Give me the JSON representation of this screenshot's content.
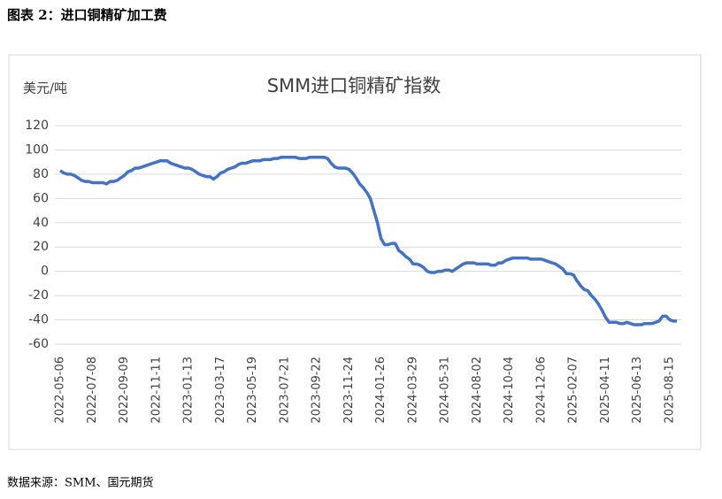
{
  "caption": "图表 2：进口铜精矿加工费",
  "source": "数据来源：SMM、国元期货",
  "chart_data": {
    "type": "line",
    "title": "SMM进口铜精矿指数",
    "y_label": "美元/吨",
    "ylim": [
      -60,
      120
    ],
    "yticks": [
      -60,
      -40,
      -20,
      0,
      20,
      40,
      60,
      80,
      100,
      120
    ],
    "grid": true,
    "categories": [
      "2022-05-06",
      null,
      null,
      null,
      null,
      null,
      null,
      null,
      null,
      "2022-07-08",
      null,
      null,
      null,
      null,
      null,
      null,
      null,
      null,
      "2022-09-09",
      null,
      null,
      null,
      null,
      null,
      null,
      null,
      null,
      "2022-11-11",
      null,
      null,
      null,
      null,
      null,
      null,
      null,
      null,
      "2023-01-13",
      null,
      null,
      null,
      null,
      null,
      null,
      null,
      null,
      "2023-03-17",
      null,
      null,
      null,
      null,
      null,
      null,
      null,
      null,
      "2023-05-19",
      null,
      null,
      null,
      null,
      null,
      null,
      null,
      null,
      "2023-07-21",
      null,
      null,
      null,
      null,
      null,
      null,
      null,
      null,
      "2023-09-22",
      null,
      null,
      null,
      null,
      null,
      null,
      null,
      null,
      "2023-11-24",
      null,
      null,
      null,
      null,
      null,
      null,
      null,
      null,
      "2024-01-26",
      null,
      null,
      null,
      null,
      null,
      null,
      null,
      null,
      "2024-03-29",
      null,
      null,
      null,
      null,
      null,
      null,
      null,
      null,
      "2024-05-31",
      null,
      null,
      null,
      null,
      null,
      null,
      null,
      null,
      "2024-08-02",
      null,
      null,
      null,
      null,
      null,
      null,
      null,
      null,
      "2024-10-04",
      null,
      null,
      null,
      null,
      null,
      null,
      null,
      null,
      "2024-12-06",
      null,
      null,
      null,
      null,
      null,
      null,
      null,
      null,
      "2025-02-07",
      null,
      null,
      null,
      null,
      null,
      null,
      null,
      null,
      "2025-04-11",
      null,
      null,
      null,
      null,
      null,
      null,
      null,
      null,
      "2025-06-13",
      null,
      null,
      null,
      null,
      null,
      null,
      null,
      null,
      "2025-08-15",
      null,
      null
    ],
    "series": [
      {
        "color": "#4472c4",
        "values": [
          83,
          81,
          80,
          80,
          79,
          77,
          75,
          74,
          74,
          73,
          73,
          73,
          73,
          72,
          74,
          74,
          75,
          77,
          79,
          82,
          83,
          85,
          85,
          86,
          87,
          88,
          89,
          90,
          91,
          91,
          91,
          89,
          88,
          87,
          86,
          85,
          85,
          84,
          82,
          80,
          79,
          78,
          78,
          76,
          78,
          81,
          82,
          84,
          85,
          86,
          88,
          89,
          89,
          90,
          91,
          91,
          91,
          92,
          92,
          92,
          93,
          93,
          94,
          94,
          94,
          94,
          94,
          93,
          93,
          93,
          94,
          94,
          94,
          94,
          94,
          93,
          89,
          86,
          85,
          85,
          85,
          84,
          81,
          77,
          72,
          69,
          65,
          60,
          50,
          40,
          27,
          22,
          22,
          23,
          23,
          17,
          15,
          12,
          10,
          6,
          6,
          5,
          3,
          0,
          -1,
          -1,
          0,
          0,
          1,
          1,
          0,
          2,
          4,
          6,
          7,
          7,
          7,
          6,
          6,
          6,
          6,
          5,
          5,
          7,
          7,
          9,
          10,
          11,
          11,
          11,
          11,
          11,
          10,
          10,
          10,
          10,
          9,
          8,
          7,
          6,
          4,
          2,
          -2,
          -2,
          -3,
          -8,
          -12,
          -15,
          -16,
          -20,
          -23,
          -27,
          -32,
          -38,
          -42,
          -42,
          -42,
          -43,
          -43,
          -42,
          -43,
          -44,
          -44,
          -44,
          -43,
          -43,
          -43,
          -42,
          -41,
          -37,
          -37,
          -40,
          -41,
          -41
        ]
      }
    ]
  }
}
